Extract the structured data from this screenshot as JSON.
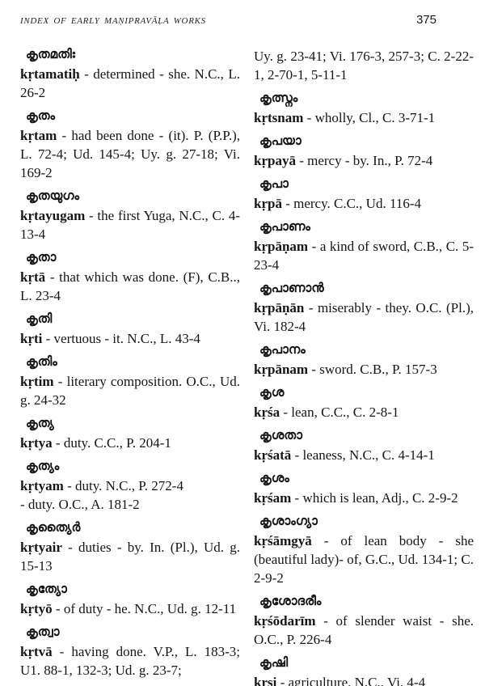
{
  "header": {
    "title": "INDEX OF EARLY MAṆIPRAVĀḶA WORKS",
    "page_number": "375"
  },
  "columns": {
    "left": [
      {
        "headword": "കൃതമതിഃ",
        "lemma": "kṛtamatiḥ",
        "text": " - determined - she. N.C., L. 26-2"
      },
      {
        "headword": "കൃതം",
        "lemma": "kṛtam",
        "text": " - had been done - (it). P. (P.P.), L. 72-4; Ud. 145-4; Uy. g. 27-18; Vi. 169-2"
      },
      {
        "headword": "കൃതയുഗം",
        "lemma": "kṛtayugam",
        "text": " - the first Yuga, N.C., C. 4-13-4"
      },
      {
        "headword": "കൃതാ",
        "lemma": "kṛtā",
        "text": " - that which was done. (F), C.B.., L. 23-4"
      },
      {
        "headword": "കൃതി",
        "lemma": "kṛti",
        "text": " - vertuous - it. N.C., L. 43-4"
      },
      {
        "headword": "കൃതിം",
        "lemma": "kṛtim",
        "text": " - literary composition. O.C., Ud. g. 24-32"
      },
      {
        "headword": "കൃത്യ",
        "lemma": "kṛtya",
        "text": " - duty. C.C., P. 204-1"
      },
      {
        "headword": "കൃത്യം",
        "lemma": "kṛtyam",
        "text": " - duty. N.C., P. 272-4\n- duty. O.C., A. 181-2"
      },
      {
        "headword": "കൃത്യൈർ",
        "lemma": "kṛtyair",
        "text": " - duties - by. In. (Pl.), Ud. g. 15-13"
      },
      {
        "headword": "കൃത്യോ",
        "lemma": "kṛtyō",
        "text": " - of duty - he. N.C., Ud. g. 12-11"
      },
      {
        "headword": "കൃത്വാ",
        "lemma": "kṛtvā",
        "text": " - having done. V.P., L. 183-3; U1. 88-1, 132-3; Ud. g. 23-7;"
      }
    ],
    "right": [
      {
        "headword": "",
        "lemma": "",
        "text": "Uy. g. 23-41; Vi. 176-3, 257-3; C. 2-22-1, 2-70-1, 5-11-1"
      },
      {
        "headword": "കൃത്സ്നം",
        "lemma": "kṛtsnam",
        "text": " - wholly, Cl., C. 3-71-1"
      },
      {
        "headword": "കൃപയാ",
        "lemma": "kṛpayā",
        "text": " - mercy - by. In., P. 72-4"
      },
      {
        "headword": "കൃപാ",
        "lemma": "kṛpā",
        "text": " - mercy. C.C., Ud. 116-4"
      },
      {
        "headword": "കൃപാണം",
        "lemma": "kṛpāṇam",
        "text": " - a kind of sword, C.B., C. 5-23-4"
      },
      {
        "headword": "കൃപാണാൻ",
        "lemma": "kṛpāṇān",
        "text": " - miserably - they. O.C. (Pl.), Vi. 182-4"
      },
      {
        "headword": "കൃപാനം",
        "lemma": "kṛpānam",
        "text": " - sword. C.B., P. 157-3"
      },
      {
        "headword": "കൃശ",
        "lemma": "kṛśa",
        "text": " - lean, C.C., C. 2-8-1"
      },
      {
        "headword": "കൃശതാ",
        "lemma": "kṛśatā",
        "text": " - leaness, N.C., C. 4-14-1"
      },
      {
        "headword": "കൃശം",
        "lemma": "kṛśam",
        "text": " - which is lean, Adj., C. 2-9-2"
      },
      {
        "headword": "കൃശാംഗ്യാ",
        "lemma": "kṛśāmgyā",
        "text": " - of lean body - she (beautiful lady)- of, G.C., Ud. 134-1; C. 2-9-2"
      },
      {
        "headword": "കൃശോദരീം",
        "lemma": "kṛśōdarīm",
        "text": " - of slender waist - she. O.C., P. 226-4"
      },
      {
        "headword": "കൃഷി",
        "lemma": "kṛṣi",
        "text": " - agriculture. N.C., Vi. 4-4"
      }
    ]
  }
}
